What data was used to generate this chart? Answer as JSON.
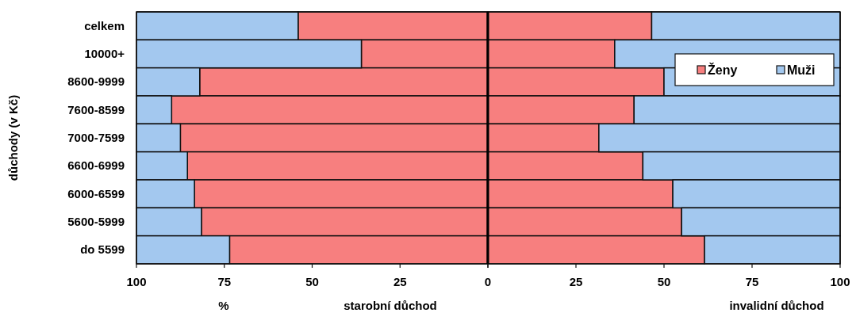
{
  "chart_data": [
    {
      "type": "bar",
      "orientation": "horizontal",
      "stacked": true,
      "xlabel": "starobní důchod",
      "ylabel": "důchody (v Kč)",
      "annotations": [
        "%"
      ],
      "categories": [
        "celkem",
        "10000+",
        "8600-9999",
        "7600-8599",
        "7000-7599",
        "6600-6999",
        "6000-6599",
        "5600-5999",
        "do 5599"
      ],
      "series": [
        {
          "color": "#f77f7f",
          "values": [
            54,
            36,
            82,
            90,
            87.5,
            85.5,
            83.5,
            81.5,
            73.5
          ]
        },
        {
          "color": "#a3c8ef",
          "values": [
            46,
            64,
            18,
            10,
            12.5,
            14.5,
            16.5,
            18.5,
            26.5
          ]
        }
      ],
      "xlim": [
        100,
        0
      ],
      "xticks": [
        100,
        75,
        50,
        25,
        0
      ],
      "legend": false
    },
    {
      "type": "bar",
      "orientation": "horizontal",
      "stacked": true,
      "xlabel": "invalidní důchod",
      "categories": [
        null,
        null,
        null,
        null,
        null,
        null,
        null,
        null,
        null
      ],
      "series": [
        {
          "name": "Ženy",
          "color": "#f77f7f",
          "values": [
            46.5,
            36,
            50,
            41.5,
            31.5,
            44,
            52.5,
            55,
            61.5
          ]
        },
        {
          "name": "Muži",
          "color": "#a3c8ef",
          "values": [
            53.5,
            64,
            50,
            58.5,
            68.5,
            56,
            47.5,
            45,
            38.5
          ]
        }
      ],
      "xlim": [
        0,
        100
      ],
      "xticks": [
        {
          "value": 0,
          "label": null
        },
        25,
        50,
        75,
        100
      ],
      "legend": "top right"
    }
  ]
}
